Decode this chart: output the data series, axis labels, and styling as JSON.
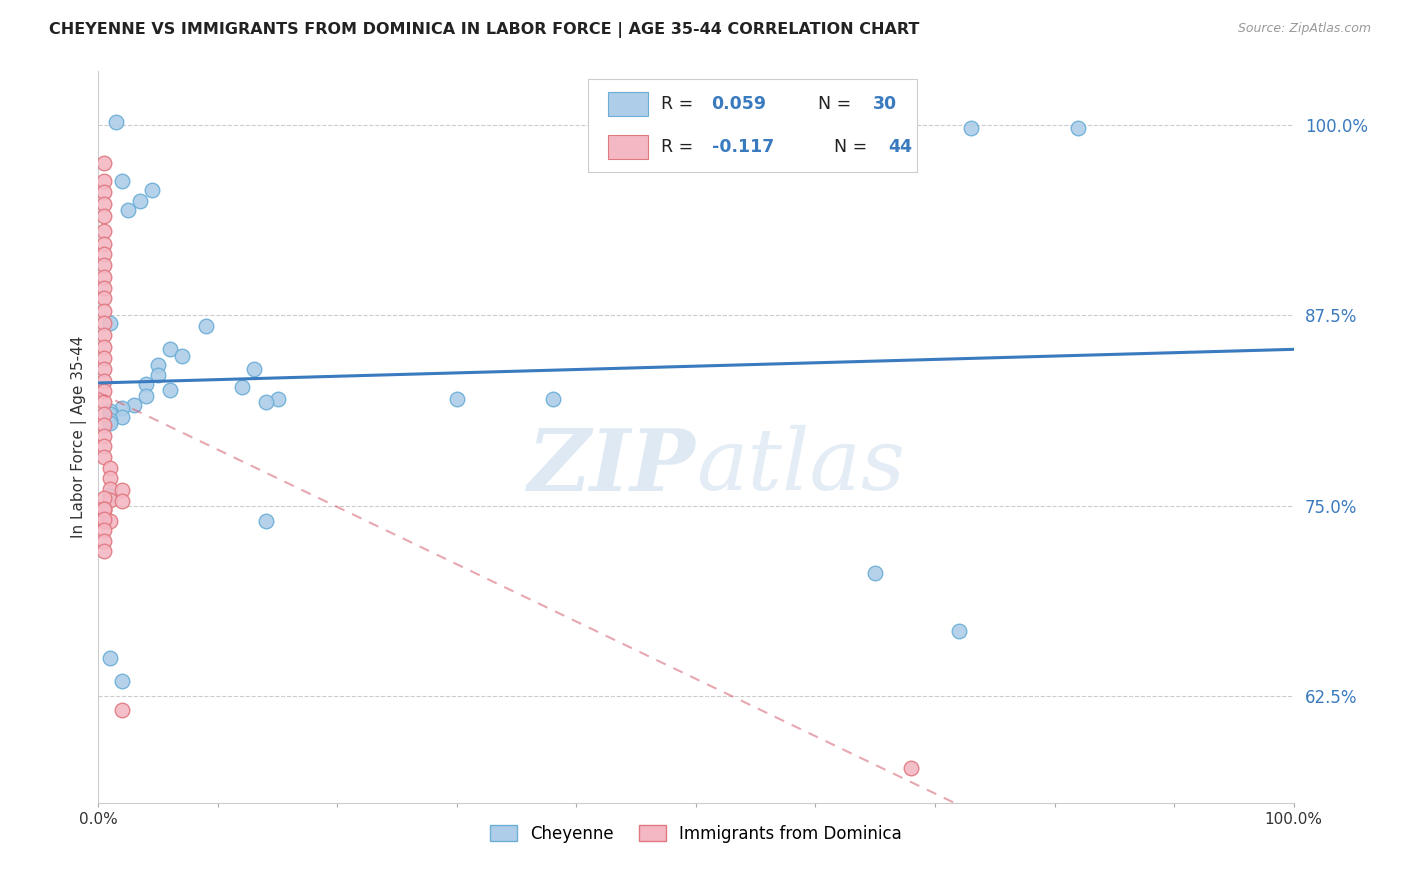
{
  "title": "CHEYENNE VS IMMIGRANTS FROM DOMINICA IN LABOR FORCE | AGE 35-44 CORRELATION CHART",
  "source": "Source: ZipAtlas.com",
  "ylabel": "In Labor Force | Age 35-44",
  "xlim": [
    0.0,
    1.0
  ],
  "ylim": [
    0.555,
    1.035
  ],
  "yticks": [
    0.625,
    0.75,
    0.875,
    1.0
  ],
  "ytick_labels": [
    "62.5%",
    "75.0%",
    "87.5%",
    "100.0%"
  ],
  "xticks": [
    0.0,
    0.1,
    0.2,
    0.3,
    0.4,
    0.5,
    0.6,
    0.7,
    0.8,
    0.9,
    1.0
  ],
  "xtick_labels": [
    "0.0%",
    "",
    "",
    "",
    "",
    "",
    "",
    "",
    "",
    "",
    "100.0%"
  ],
  "cheyenne_color": "#aecde8",
  "cheyenne_edge": "#6baed6",
  "dominica_color": "#f4b8c4",
  "dominica_edge": "#e07880",
  "cheyenne_trend_color": "#3a7abf",
  "dominica_trend_color": "#d46070",
  "watermark_zip": "ZIP",
  "watermark_atlas": "atlas",
  "cheyenne_points": [
    [
      0.015,
      1.002
    ],
    [
      0.02,
      0.963
    ],
    [
      0.045,
      0.957
    ],
    [
      0.035,
      0.95
    ],
    [
      0.025,
      0.944
    ],
    [
      0.01,
      0.87
    ],
    [
      0.09,
      0.868
    ],
    [
      0.06,
      0.853
    ],
    [
      0.07,
      0.848
    ],
    [
      0.05,
      0.842
    ],
    [
      0.13,
      0.84
    ],
    [
      0.05,
      0.836
    ],
    [
      0.04,
      0.83
    ],
    [
      0.12,
      0.828
    ],
    [
      0.06,
      0.826
    ],
    [
      0.04,
      0.822
    ],
    [
      0.15,
      0.82
    ],
    [
      0.14,
      0.818
    ],
    [
      0.03,
      0.816
    ],
    [
      0.02,
      0.814
    ],
    [
      0.01,
      0.812
    ],
    [
      0.01,
      0.81
    ],
    [
      0.02,
      0.808
    ],
    [
      0.01,
      0.806
    ],
    [
      0.01,
      0.804
    ],
    [
      0.3,
      0.82
    ],
    [
      0.38,
      0.82
    ],
    [
      0.01,
      0.757
    ],
    [
      0.14,
      0.74
    ],
    [
      0.01,
      0.65
    ],
    [
      0.02,
      0.635
    ],
    [
      0.65,
      0.706
    ],
    [
      0.72,
      0.668
    ],
    [
      0.73,
      0.998
    ],
    [
      0.82,
      0.998
    ]
  ],
  "dominica_points": [
    [
      0.005,
      0.975
    ],
    [
      0.005,
      0.963
    ],
    [
      0.005,
      0.956
    ],
    [
      0.005,
      0.948
    ],
    [
      0.005,
      0.94
    ],
    [
      0.005,
      0.93
    ],
    [
      0.005,
      0.922
    ],
    [
      0.005,
      0.915
    ],
    [
      0.005,
      0.908
    ],
    [
      0.005,
      0.9
    ],
    [
      0.005,
      0.893
    ],
    [
      0.005,
      0.886
    ],
    [
      0.005,
      0.878
    ],
    [
      0.005,
      0.87
    ],
    [
      0.005,
      0.862
    ],
    [
      0.005,
      0.854
    ],
    [
      0.005,
      0.847
    ],
    [
      0.005,
      0.84
    ],
    [
      0.005,
      0.832
    ],
    [
      0.005,
      0.825
    ],
    [
      0.005,
      0.818
    ],
    [
      0.005,
      0.81
    ],
    [
      0.005,
      0.803
    ],
    [
      0.005,
      0.796
    ],
    [
      0.005,
      0.789
    ],
    [
      0.005,
      0.782
    ],
    [
      0.01,
      0.775
    ],
    [
      0.01,
      0.768
    ],
    [
      0.01,
      0.761
    ],
    [
      0.01,
      0.754
    ],
    [
      0.005,
      0.747
    ],
    [
      0.005,
      0.74
    ],
    [
      0.005,
      0.755
    ],
    [
      0.005,
      0.748
    ],
    [
      0.02,
      0.76
    ],
    [
      0.02,
      0.753
    ],
    [
      0.02,
      0.616
    ],
    [
      0.01,
      0.74
    ],
    [
      0.68,
      0.578
    ],
    [
      0.005,
      0.748
    ],
    [
      0.005,
      0.741
    ],
    [
      0.005,
      0.734
    ],
    [
      0.005,
      0.727
    ],
    [
      0.005,
      0.72
    ]
  ]
}
